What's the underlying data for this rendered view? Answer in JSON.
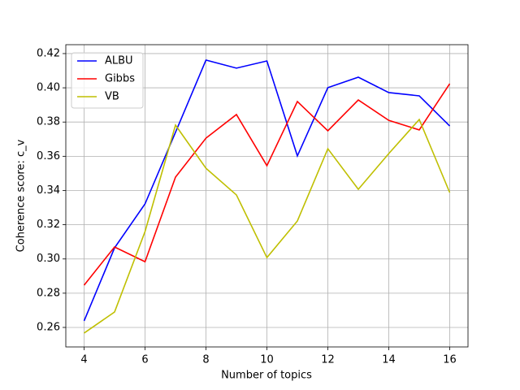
{
  "chart_data": {
    "type": "line",
    "x": [
      4,
      5,
      6,
      7,
      8,
      9,
      10,
      11,
      12,
      13,
      14,
      15,
      16
    ],
    "series": [
      {
        "name": "ALBU",
        "color": "#0000ff",
        "values": [
          0.2638,
          0.3065,
          0.3322,
          0.374,
          0.4162,
          0.4115,
          0.4157,
          0.3602,
          0.4001,
          0.4062,
          0.3972,
          0.3953,
          0.3777
        ]
      },
      {
        "name": "Gibbs",
        "color": "#ff0000",
        "values": [
          0.2847,
          0.307,
          0.2984,
          0.3478,
          0.3706,
          0.3844,
          0.3545,
          0.392,
          0.3749,
          0.3929,
          0.381,
          0.3754,
          0.4024
        ]
      },
      {
        "name": "VB",
        "color": "#bfbf00",
        "values": [
          0.2567,
          0.269,
          0.316,
          0.3782,
          0.353,
          0.3374,
          0.3008,
          0.3222,
          0.3644,
          0.3407,
          0.3616,
          0.3815,
          0.3388
        ]
      }
    ],
    "xlabel": "Number of topics",
    "ylabel": "Coherence score: c_v",
    "xlim": [
      3.4,
      16.6
    ],
    "xticks": [
      4,
      6,
      8,
      10,
      12,
      14,
      16
    ],
    "ylim": [
      0.2486,
      0.4252
    ],
    "yticks": [
      0.26,
      0.28,
      {
        "value": 0.3,
        "label": "0.30"
      },
      0.32,
      0.34,
      0.36,
      0.38,
      {
        "value": 0.4,
        "label": "0.40"
      },
      0.42
    ],
    "grid": true,
    "legend": "upper-left"
  }
}
